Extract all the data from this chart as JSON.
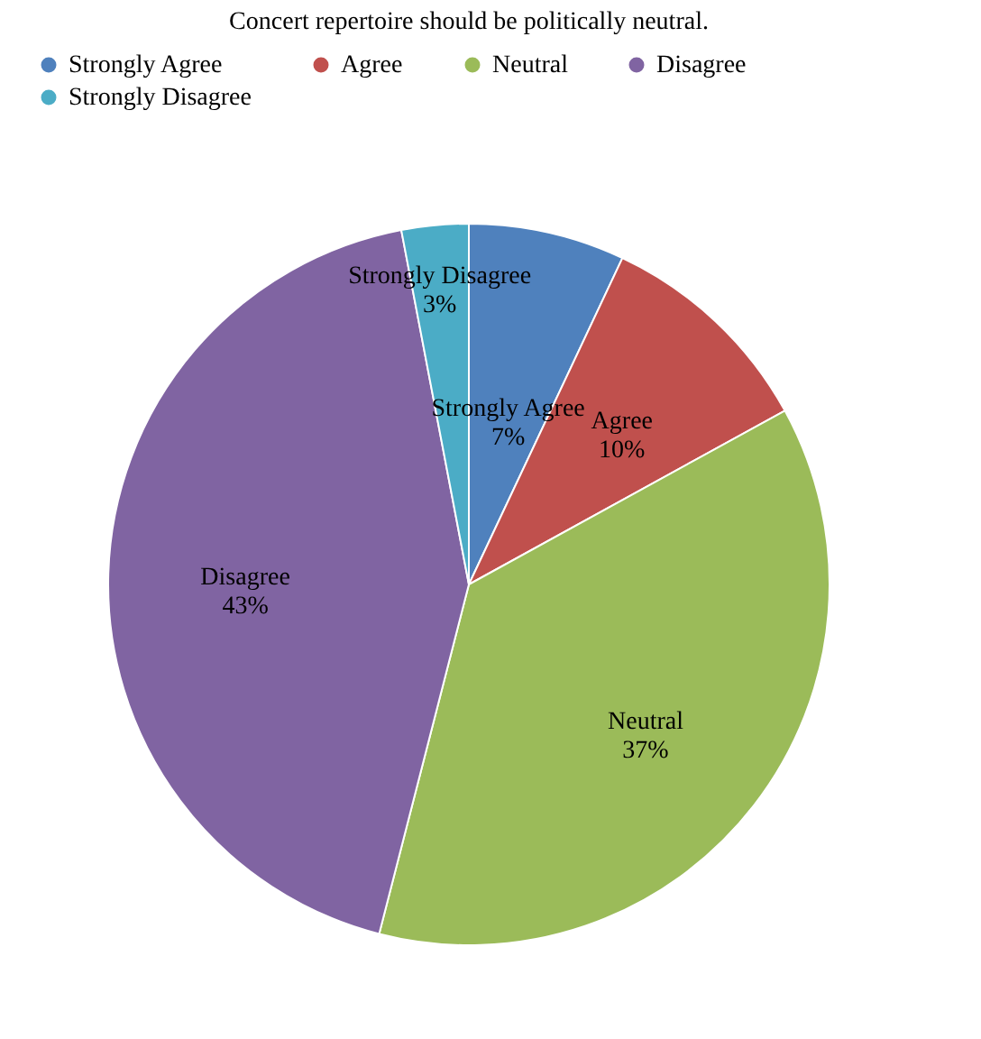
{
  "chart_data": {
    "type": "pie",
    "title": "Concert repertoire should be politically neutral.",
    "categories": [
      "Strongly Agree",
      "Agree",
      "Neutral",
      "Disagree",
      "Strongly Disagree"
    ],
    "values": [
      7,
      10,
      37,
      43,
      3
    ],
    "value_labels": [
      "7%",
      "10%",
      "37%",
      "43%",
      "3%"
    ],
    "colors": [
      "#4f81bd",
      "#c0504d",
      "#9bbb59",
      "#8064a2",
      "#4bacc6"
    ],
    "legend": "top"
  }
}
